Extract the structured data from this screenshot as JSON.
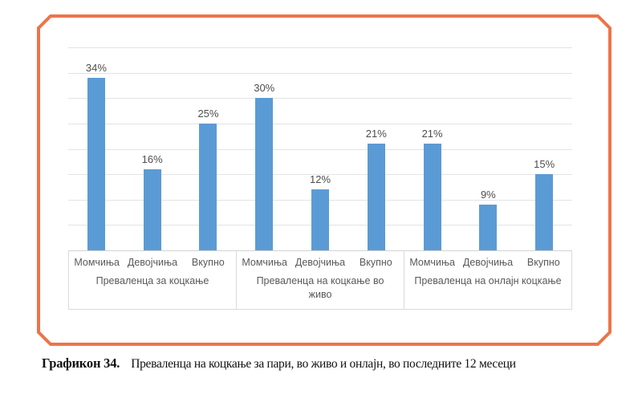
{
  "caption": {
    "prefix": "Графикон 34.",
    "text": "Преваленца на коцкање за пари, во живо и онлајн, во последните 12 месеци"
  },
  "chart_data": {
    "type": "bar",
    "title": "",
    "xlabel": "",
    "ylabel": "",
    "ylim": [
      0,
      40
    ],
    "gridline_interval": 5,
    "grid": true,
    "legend": "none",
    "bar_color": "#5B9BD5",
    "frame_color": "#ED744B",
    "data_label_suffix": "%",
    "groups": [
      {
        "label": "Преваленца за коцкање",
        "categories": [
          "Момчиња",
          "Девојчиња",
          "Вкупно"
        ],
        "values": [
          34,
          16,
          25
        ]
      },
      {
        "label": "Преваленца на коцкање во живо",
        "label_lines": [
          "Преваленца на коцкање во",
          "живо"
        ],
        "categories": [
          "Момчиња",
          "Девојчиња",
          "Вкупно"
        ],
        "values": [
          30,
          12,
          21
        ]
      },
      {
        "label": "Преваленца на онлајн коцкање",
        "categories": [
          "Момчиња",
          "Девојчиња",
          "Вкупно"
        ],
        "values": [
          21,
          9,
          15
        ]
      }
    ]
  }
}
